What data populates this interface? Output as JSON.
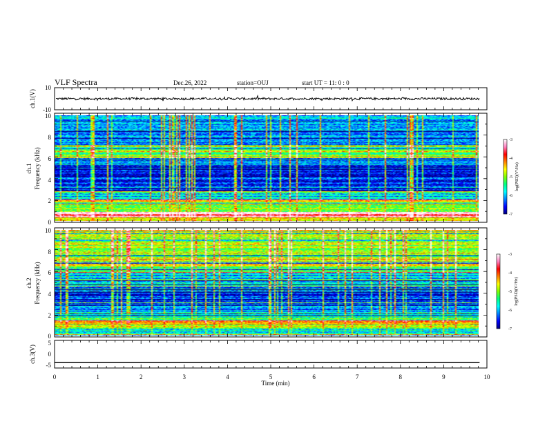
{
  "header": {
    "title": "VLF Spectra",
    "date": "Dec.26, 2022",
    "station": "station=OUJ",
    "start": "start  UT =   11: 0  : 0"
  },
  "chart_data": [
    {
      "type": "line",
      "name": "ch1-waveform",
      "ylabel": "ch.1(V)",
      "ylim": [
        -10,
        10
      ],
      "yticks": [
        "10",
        "-10"
      ],
      "mean_level": 0,
      "fluctuation_amplitude": 1
    },
    {
      "type": "heatmap",
      "name": "ch1-spectrogram",
      "ylabel": "ch.1\nFrequency (kHz)",
      "ylabel_lines": [
        "ch.1",
        "Frequency (kHz)"
      ],
      "ylim": [
        0,
        10
      ],
      "yticks": [
        "0",
        "2",
        "4",
        "6",
        "8",
        "10"
      ],
      "bands_khz": [
        {
          "from": 0.0,
          "to": 0.3,
          "level": 0.6
        },
        {
          "from": 0.3,
          "to": 0.8,
          "level": 0.92
        },
        {
          "from": 0.8,
          "to": 1.2,
          "level": 0.55
        },
        {
          "from": 1.2,
          "to": 1.5,
          "level": 0.5
        },
        {
          "from": 1.5,
          "to": 2.0,
          "level": 0.72
        },
        {
          "from": 2.0,
          "to": 2.8,
          "level": 0.3
        },
        {
          "from": 2.8,
          "to": 4.0,
          "level": 0.12
        },
        {
          "from": 4.0,
          "to": 5.2,
          "level": 0.1
        },
        {
          "from": 5.2,
          "to": 6.0,
          "level": 0.22
        },
        {
          "from": 6.0,
          "to": 7.2,
          "level": 0.42
        },
        {
          "from": 7.2,
          "to": 10.0,
          "level": 0.24
        }
      ],
      "colorbar": {
        "label": "log(PSD)(V²/Hz)",
        "range": [
          -7,
          -3
        ],
        "ticks": [
          "-3",
          "-4",
          "-5",
          "-6",
          "-7"
        ]
      }
    },
    {
      "type": "heatmap",
      "name": "ch2-spectrogram",
      "ylabel": "ch.2\nFrequency (kHz)",
      "ylabel_lines": [
        "ch.2",
        "Frequency (kHz)"
      ],
      "ylim": [
        0,
        10
      ],
      "yticks": [
        "0",
        "2",
        "4",
        "6",
        "8",
        "10"
      ],
      "bands_khz": [
        {
          "from": 0.0,
          "to": 0.6,
          "level": 0.3
        },
        {
          "from": 0.6,
          "to": 1.0,
          "level": 0.55
        },
        {
          "from": 1.0,
          "to": 1.4,
          "level": 0.72
        },
        {
          "from": 1.4,
          "to": 2.0,
          "level": 0.38
        },
        {
          "from": 2.0,
          "to": 2.8,
          "level": 0.22
        },
        {
          "from": 2.8,
          "to": 4.6,
          "level": 0.14
        },
        {
          "from": 4.6,
          "to": 5.8,
          "level": 0.28
        },
        {
          "from": 5.8,
          "to": 6.5,
          "level": 0.44
        },
        {
          "from": 6.5,
          "to": 7.5,
          "level": 0.58
        },
        {
          "from": 7.5,
          "to": 10.0,
          "level": 0.52
        }
      ],
      "colorbar": {
        "label": "log(PSD)(V²/Hz)",
        "range": [
          -7,
          -3
        ],
        "ticks": [
          "-3",
          "-4",
          "-5",
          "-6",
          "-7"
        ]
      }
    },
    {
      "type": "line",
      "name": "ch3-waveform",
      "ylabel": "ch.3(V)",
      "ylim": [
        -5,
        5
      ],
      "yticks": [
        "5",
        "0",
        "-5"
      ],
      "values": [
        [
          0,
          -3
        ],
        [
          9.83,
          -3
        ]
      ]
    }
  ],
  "xaxis": {
    "label": "Time (min)",
    "range": [
      0,
      10
    ],
    "ticks": [
      "0",
      "1",
      "2",
      "3",
      "4",
      "5",
      "6",
      "7",
      "8",
      "9",
      "10"
    ],
    "data_end_min": 9.83
  },
  "colors": {
    "colormap": [
      "#000080",
      "#0000ff",
      "#0080ff",
      "#00ffff",
      "#00ff80",
      "#80ff00",
      "#ffff00",
      "#ff8000",
      "#ff0000",
      "#ff80c0",
      "#ffffff"
    ]
  }
}
